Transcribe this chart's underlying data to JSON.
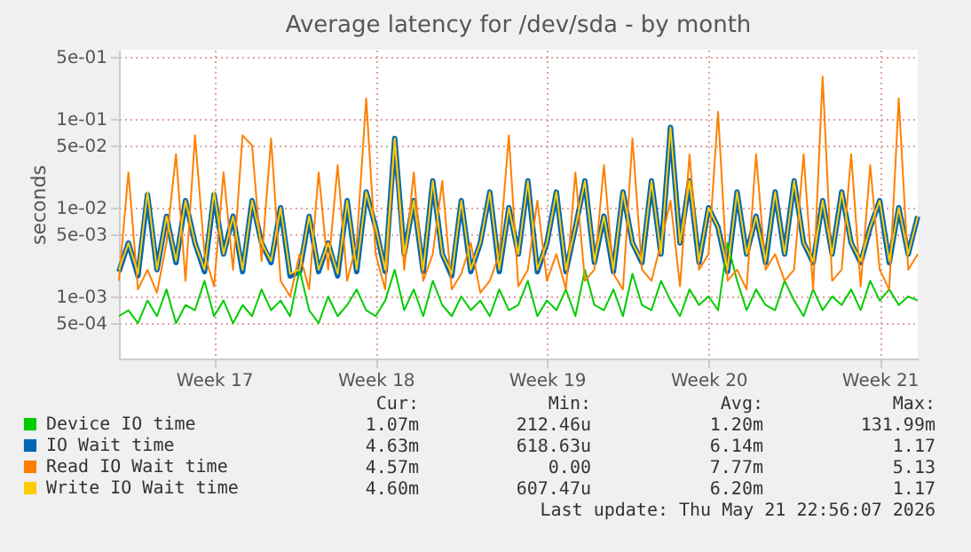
{
  "chart_data": {
    "type": "line",
    "title": "Average latency for /dev/sda - by month",
    "ylabel": "seconds",
    "categories": [
      null,
      null,
      null,
      null,
      null,
      null,
      null,
      null,
      null,
      null,
      "Week 17",
      null,
      null,
      null,
      null,
      null,
      null,
      null,
      null,
      null,
      null,
      null,
      null,
      null,
      null,
      null,
      null,
      "Week 18",
      null,
      null,
      null,
      null,
      null,
      null,
      null,
      null,
      null,
      null,
      null,
      null,
      null,
      null,
      null,
      null,
      null,
      "Week 19",
      null,
      null,
      null,
      null,
      null,
      null,
      null,
      null,
      null,
      null,
      null,
      null,
      null,
      null,
      null,
      null,
      "Week 20",
      null,
      null,
      null,
      null,
      null,
      null,
      null,
      null,
      null,
      null,
      null,
      null,
      null,
      null,
      null,
      null,
      null,
      "Week 21",
      null,
      null,
      null,
      null
    ],
    "series": [
      {
        "name": "Device IO time",
        "color": "#00cc00",
        "values": [
          0.0006,
          0.0007,
          0.0005,
          0.0009,
          0.0006,
          0.0012,
          0.0005,
          0.0008,
          0.0007,
          0.0015,
          0.0006,
          0.0009,
          0.0005,
          0.0008,
          0.0006,
          0.0012,
          0.0007,
          0.0009,
          0.0006,
          0.002,
          0.0007,
          0.0005,
          0.001,
          0.0006,
          0.0008,
          0.0012,
          0.0007,
          0.0006,
          0.0009,
          0.002,
          0.0007,
          0.0012,
          0.0006,
          0.0015,
          0.0008,
          0.0006,
          0.001,
          0.0007,
          0.0009,
          0.0006,
          0.0012,
          0.0007,
          0.0008,
          0.0015,
          0.0006,
          0.0009,
          0.0007,
          0.0012,
          0.0006,
          0.002,
          0.0008,
          0.0007,
          0.0012,
          0.0006,
          0.0018,
          0.0008,
          0.0007,
          0.0015,
          0.0009,
          0.0006,
          0.0012,
          0.0008,
          0.001,
          0.0007,
          0.004,
          0.0015,
          0.0007,
          0.0012,
          0.0008,
          0.0007,
          0.0015,
          0.0009,
          0.0006,
          0.0012,
          0.0007,
          0.001,
          0.0008,
          0.0012,
          0.0007,
          0.0015,
          0.0009,
          0.0012,
          0.0008,
          0.001,
          0.0009
        ]
      },
      {
        "name": "IO Wait time",
        "color": "#0066b3",
        "values": [
          0.0019,
          0.004,
          0.0017,
          0.014,
          0.002,
          0.008,
          0.0024,
          0.012,
          0.004,
          0.0019,
          0.014,
          0.003,
          0.008,
          0.0019,
          0.012,
          0.004,
          0.0024,
          0.01,
          0.0017,
          0.0019,
          0.008,
          0.0019,
          0.004,
          0.0017,
          0.012,
          0.0019,
          0.015,
          0.006,
          0.0019,
          0.06,
          0.003,
          0.012,
          0.0019,
          0.02,
          0.003,
          0.0017,
          0.012,
          0.0019,
          0.004,
          0.015,
          0.0019,
          0.01,
          0.003,
          0.02,
          0.0019,
          0.004,
          0.015,
          0.0019,
          0.006,
          0.02,
          0.0024,
          0.008,
          0.0019,
          0.015,
          0.004,
          0.0024,
          0.02,
          0.003,
          0.08,
          0.004,
          0.02,
          0.0024,
          0.01,
          0.006,
          0.0019,
          0.015,
          0.003,
          0.008,
          0.0024,
          0.015,
          0.003,
          0.02,
          0.004,
          0.0024,
          0.012,
          0.003,
          0.015,
          0.004,
          0.0024,
          0.006,
          0.012,
          0.0024,
          0.01,
          0.003,
          0.008
        ]
      },
      {
        "name": "Read IO Wait time",
        "color": "#ff8000",
        "values": [
          0.0015,
          0.025,
          0.0012,
          0.002,
          0.0011,
          0.004,
          0.04,
          0.0015,
          0.065,
          0.003,
          0.0013,
          0.025,
          0.002,
          0.065,
          0.05,
          0.0025,
          0.06,
          0.0015,
          0.001,
          0.003,
          0.0012,
          0.025,
          0.002,
          0.03,
          0.0015,
          0.004,
          0.17,
          0.003,
          0.0012,
          0.06,
          0.002,
          0.025,
          0.0015,
          0.003,
          0.02,
          0.0012,
          0.0018,
          0.004,
          0.0011,
          0.0015,
          0.003,
          0.065,
          0.0013,
          0.002,
          0.012,
          0.0015,
          0.003,
          0.0012,
          0.025,
          0.0015,
          0.002,
          0.03,
          0.0018,
          0.0012,
          0.06,
          0.002,
          0.0015,
          0.004,
          0.012,
          0.0013,
          0.04,
          0.002,
          0.003,
          0.12,
          0.0015,
          0.002,
          0.0012,
          0.04,
          0.002,
          0.003,
          0.0015,
          0.002,
          0.04,
          0.0012,
          0.3,
          0.0015,
          0.002,
          0.04,
          0.0013,
          0.03,
          0.002,
          0.0012,
          0.17,
          0.002,
          0.003
        ]
      },
      {
        "name": "Write IO Wait time",
        "color": "#ffcc00",
        "values": [
          0.002,
          0.004,
          0.0018,
          0.015,
          0.002,
          0.008,
          0.0025,
          0.012,
          0.004,
          0.002,
          0.015,
          0.003,
          0.008,
          0.002,
          0.012,
          0.004,
          0.0025,
          0.01,
          0.0018,
          0.002,
          0.008,
          0.002,
          0.004,
          0.0018,
          0.012,
          0.002,
          0.015,
          0.006,
          0.002,
          0.06,
          0.003,
          0.012,
          0.002,
          0.02,
          0.003,
          0.0018,
          0.012,
          0.002,
          0.004,
          0.015,
          0.002,
          0.01,
          0.003,
          0.02,
          0.002,
          0.004,
          0.015,
          0.002,
          0.006,
          0.02,
          0.0025,
          0.008,
          0.002,
          0.015,
          0.004,
          0.0025,
          0.02,
          0.003,
          0.08,
          0.004,
          0.02,
          0.0025,
          0.01,
          0.006,
          0.002,
          0.015,
          0.003,
          0.008,
          0.0025,
          0.015,
          0.003,
          0.02,
          0.004,
          0.0025,
          0.012,
          0.003,
          0.015,
          0.004,
          0.0025,
          0.006,
          0.012,
          0.0025,
          0.01,
          0.003,
          0.008
        ]
      }
    ],
    "ylim": [
      0.0002,
      0.6
    ],
    "log": true,
    "yticks": [
      {
        "value": 0.0005,
        "label": "5e-04"
      },
      {
        "value": 0.001,
        "label": "1e-03"
      },
      {
        "value": 0.005,
        "label": "5e-03"
      },
      {
        "value": 0.01,
        "label": "1e-02"
      },
      {
        "value": 0.05,
        "label": "5e-02"
      },
      {
        "value": 0.1,
        "label": "1e-01"
      },
      {
        "value": 0.5,
        "label": "5e-01"
      }
    ],
    "grid": true,
    "legend": "bottom",
    "annotations": [
      "Cur:",
      "Min:",
      "Avg:",
      "Max:",
      "1.07m",
      "212.46u",
      "1.20m",
      "131.99m",
      "4.63m",
      "618.63u",
      "6.14m",
      "1.17",
      "4.57m",
      "0.00",
      "7.77m",
      "5.13",
      "4.60m",
      "607.47u",
      "6.20m",
      "1.17",
      "Last update: Thu May 21 22:56:07 2026"
    ]
  }
}
